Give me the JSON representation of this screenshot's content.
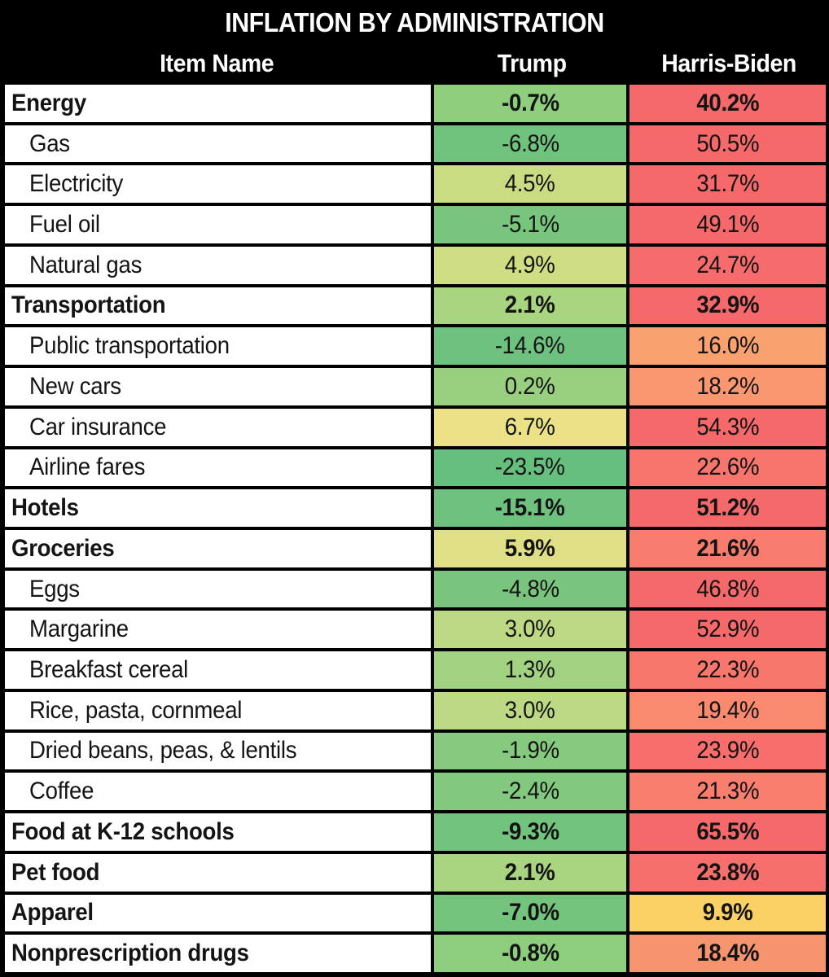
{
  "title": "INFLATION BY ADMINISTRATION",
  "columns": {
    "item": "Item Name",
    "trump": "Trump",
    "harris_biden": "Harris-Biden"
  },
  "colors": {
    "background_border": "#000000",
    "header_bg": "#000000",
    "header_text": "#FFFFFF",
    "row_bg": "#FFFFFF",
    "body_text": "#141414",
    "scale_green": "#66BF7C",
    "scale_yellow": "#EBE287",
    "scale_red": "#F5696B"
  },
  "rows": [
    {
      "item": "Energy",
      "category": true,
      "trump": {
        "value": "-0.7%",
        "bg": "#8FCE7D"
      },
      "harris_biden": {
        "value": "40.2%",
        "bg": "#F5696B"
      }
    },
    {
      "item": "Gas",
      "category": false,
      "trump": {
        "value": "-6.8%",
        "bg": "#6FC37D"
      },
      "harris_biden": {
        "value": "50.5%",
        "bg": "#F5696B"
      }
    },
    {
      "item": "Electricity",
      "category": false,
      "trump": {
        "value": "4.5%",
        "bg": "#C9DC82"
      },
      "harris_biden": {
        "value": "31.7%",
        "bg": "#F5696B"
      }
    },
    {
      "item": "Fuel oil",
      "category": false,
      "trump": {
        "value": "-5.1%",
        "bg": "#78C57E"
      },
      "harris_biden": {
        "value": "49.1%",
        "bg": "#F5696B"
      }
    },
    {
      "item": "Natural gas",
      "category": false,
      "trump": {
        "value": "4.9%",
        "bg": "#CFDE83"
      },
      "harris_biden": {
        "value": "24.7%",
        "bg": "#F66C6C"
      }
    },
    {
      "item": "Transportation",
      "category": true,
      "trump": {
        "value": "2.1%",
        "bg": "#A9D480"
      },
      "harris_biden": {
        "value": "32.9%",
        "bg": "#F5696B"
      }
    },
    {
      "item": "Public transportation",
      "category": false,
      "trump": {
        "value": "-14.6%",
        "bg": "#6FC17F"
      },
      "harris_biden": {
        "value": "16.0%",
        "bg": "#F9A26F"
      }
    },
    {
      "item": "New cars",
      "category": false,
      "trump": {
        "value": "0.2%",
        "bg": "#98D07F"
      },
      "harris_biden": {
        "value": "18.2%",
        "bg": "#F99771"
      }
    },
    {
      "item": "Car insurance",
      "category": false,
      "trump": {
        "value": "6.7%",
        "bg": "#EBE287"
      },
      "harris_biden": {
        "value": "54.3%",
        "bg": "#F5696B"
      }
    },
    {
      "item": "Airline fares",
      "category": false,
      "trump": {
        "value": "-23.5%",
        "bg": "#66BF7C"
      },
      "harris_biden": {
        "value": "22.6%",
        "bg": "#F7756D"
      }
    },
    {
      "item": "Hotels",
      "category": true,
      "trump": {
        "value": "-15.1%",
        "bg": "#6EC17E"
      },
      "harris_biden": {
        "value": "51.2%",
        "bg": "#F5696B"
      }
    },
    {
      "item": "Groceries",
      "category": true,
      "trump": {
        "value": "5.9%",
        "bg": "#DFE085"
      },
      "harris_biden": {
        "value": "21.6%",
        "bg": "#F87C6E"
      }
    },
    {
      "item": "Eggs",
      "category": false,
      "trump": {
        "value": "-4.8%",
        "bg": "#7AC57E"
      },
      "harris_biden": {
        "value": "46.8%",
        "bg": "#F5696B"
      }
    },
    {
      "item": "Margarine",
      "category": false,
      "trump": {
        "value": "3.0%",
        "bg": "#BED983"
      },
      "harris_biden": {
        "value": "52.9%",
        "bg": "#F5696B"
      }
    },
    {
      "item": "Breakfast cereal",
      "category": false,
      "trump": {
        "value": "1.3%",
        "bg": "#A0D280"
      },
      "harris_biden": {
        "value": "22.3%",
        "bg": "#F8776D"
      }
    },
    {
      "item": "Rice, pasta, cornmeal",
      "category": false,
      "trump": {
        "value": "3.0%",
        "bg": "#BED983"
      },
      "harris_biden": {
        "value": "19.4%",
        "bg": "#F98A70"
      }
    },
    {
      "item": "Dried beans, peas, & lentils",
      "category": false,
      "trump": {
        "value": "-1.9%",
        "bg": "#85CA7F"
      },
      "harris_biden": {
        "value": "23.9%",
        "bg": "#F76E6C"
      }
    },
    {
      "item": "Coffee",
      "category": false,
      "trump": {
        "value": "-2.4%",
        "bg": "#82C97F"
      },
      "harris_biden": {
        "value": "21.3%",
        "bg": "#F87E6E"
      }
    },
    {
      "item": "Food at K-12 schools",
      "category": true,
      "trump": {
        "value": "-9.3%",
        "bg": "#72C37E"
      },
      "harris_biden": {
        "value": "65.5%",
        "bg": "#F5696B"
      }
    },
    {
      "item": "Pet food",
      "category": true,
      "trump": {
        "value": "2.1%",
        "bg": "#A9D480"
      },
      "harris_biden": {
        "value": "23.8%",
        "bg": "#F76F6C"
      }
    },
    {
      "item": "Apparel",
      "category": true,
      "trump": {
        "value": "-7.0%",
        "bg": "#74C47D"
      },
      "harris_biden": {
        "value": "9.9%",
        "bg": "#FBD166"
      }
    },
    {
      "item": "Nonprescription drugs",
      "category": true,
      "trump": {
        "value": "-0.8%",
        "bg": "#8DCE7E"
      },
      "harris_biden": {
        "value": "18.4%",
        "bg": "#F79470"
      }
    }
  ],
  "chart_data": {
    "type": "table",
    "title": "INFLATION BY ADMINISTRATION",
    "columns": [
      "Item Name",
      "Trump",
      "Harris-Biden"
    ],
    "units": "%",
    "category_rows": [
      "Energy",
      "Transportation",
      "Hotels",
      "Groceries",
      "Food at K-12 schools",
      "Pet food",
      "Apparel",
      "Nonprescription drugs"
    ],
    "rows": [
      [
        "Energy",
        -0.7,
        40.2
      ],
      [
        "Gas",
        -6.8,
        50.5
      ],
      [
        "Electricity",
        4.5,
        31.7
      ],
      [
        "Fuel oil",
        -5.1,
        49.1
      ],
      [
        "Natural gas",
        4.9,
        24.7
      ],
      [
        "Transportation",
        2.1,
        32.9
      ],
      [
        "Public transportation",
        -14.6,
        16.0
      ],
      [
        "New cars",
        0.2,
        18.2
      ],
      [
        "Car insurance",
        6.7,
        54.3
      ],
      [
        "Airline fares",
        -23.5,
        22.6
      ],
      [
        "Hotels",
        -15.1,
        51.2
      ],
      [
        "Groceries",
        5.9,
        21.6
      ],
      [
        "Eggs",
        -4.8,
        46.8
      ],
      [
        "Margarine",
        3.0,
        52.9
      ],
      [
        "Breakfast cereal",
        1.3,
        22.3
      ],
      [
        "Rice, pasta, cornmeal",
        3.0,
        19.4
      ],
      [
        "Dried beans, peas, & lentils",
        -1.9,
        23.9
      ],
      [
        "Coffee",
        -2.4,
        21.3
      ],
      [
        "Food at K-12 schools",
        -9.3,
        65.5
      ],
      [
        "Pet food",
        2.1,
        23.8
      ],
      [
        "Apparel",
        -7.0,
        9.9
      ],
      [
        "Nonprescription drugs",
        -0.8,
        18.4
      ]
    ],
    "color_coding": "cell background is a green-yellow-red scale: green = low/negative inflation, yellow ~ 7-10%, red = high inflation",
    "legend_position": "none",
    "grid": true
  }
}
